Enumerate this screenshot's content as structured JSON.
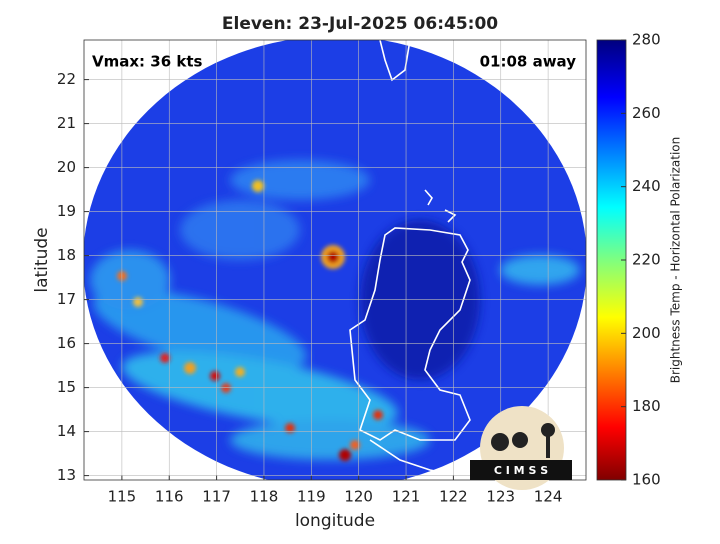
{
  "chart_data": {
    "type": "map",
    "title": "Eleven: 23-Jul-2025 06:45:00",
    "xlabel": "longitude",
    "ylabel": "latitude",
    "annotations": [
      "Vmax: 36 kts",
      "01:08 away"
    ],
    "xlim": [
      114.2,
      124.8
    ],
    "xticks": [
      115,
      116,
      117,
      118,
      119,
      120,
      121,
      122,
      123,
      124
    ],
    "ylim": [
      12.9,
      22.9
    ],
    "yticks": [
      13,
      14,
      15,
      16,
      17,
      18,
      19,
      20,
      21,
      22
    ],
    "grid": true,
    "colorbar": {
      "label": "Brightness Temp - Horizontal Polarization",
      "lim": [
        160,
        280
      ],
      "ticks": [
        160,
        180,
        200,
        220,
        240,
        260,
        280
      ]
    },
    "logo_text": "C I M S S"
  }
}
